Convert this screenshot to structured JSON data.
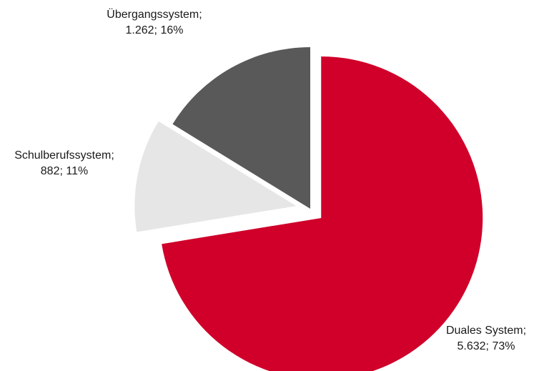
{
  "chart_data": {
    "type": "pie",
    "title": "",
    "slices": [
      {
        "name": "Duales System",
        "value": 5632,
        "percent": 73,
        "color": "#d0002a",
        "exploded": true,
        "label_lines": [
          "Duales System;",
          "5.632; 73%"
        ]
      },
      {
        "name": "Schulberufssystem",
        "value": 882,
        "percent": 11,
        "color": "#e6e6e6",
        "exploded": true,
        "label_lines": [
          "Schulberufssystem;",
          "882; 11%"
        ]
      },
      {
        "name": "Übergangssystem",
        "value": 1262,
        "percent": 16,
        "color": "#595959",
        "exploded": false,
        "label_lines": [
          "Übergangssystem;",
          "1.262; 16%"
        ]
      }
    ],
    "start_angle_deg": 0,
    "direction": "clockwise",
    "legend": "none"
  }
}
